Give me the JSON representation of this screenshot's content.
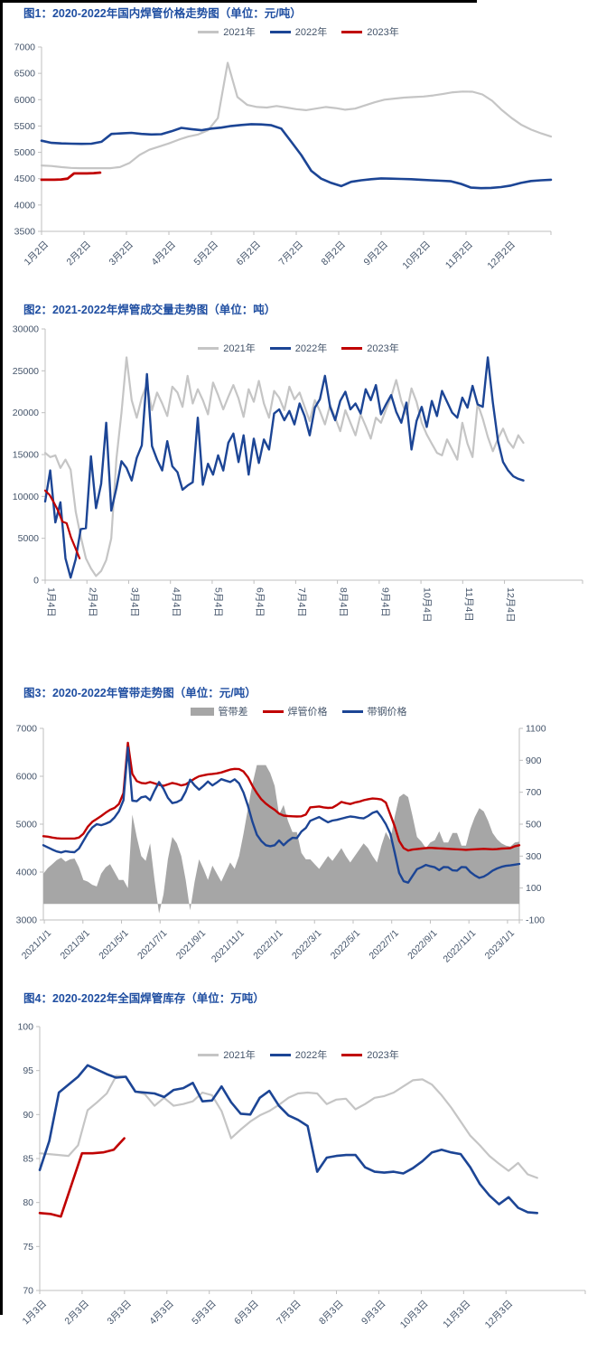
{
  "colors": {
    "navy": "#1c4595",
    "gray": "#c5c5c5",
    "red": "#c00000",
    "area": "#a6a6a6",
    "axis": "#bfbfbf",
    "tick_text": "#44546a",
    "title_text": "#1f4ea1"
  },
  "chart_data": [
    {
      "type": "line",
      "title": "图1：2020-2022年国内焊管价格走势图（单位：元/吨）",
      "y": {
        "min": 3500,
        "max": 7000,
        "step": 500
      },
      "x_ticks": {
        "labels": [
          "1月2日",
          "2月2日",
          "3月2日",
          "4月2日",
          "5月2日",
          "6月2日",
          "7月2日",
          "8月2日",
          "9月2日",
          "10月2日",
          "11月2日",
          "12月2日"
        ],
        "rotate": -45,
        "start": 0,
        "step": 0.08333
      },
      "plot": {
        "l": 46,
        "r": 610,
        "t": 8,
        "b": 212
      },
      "legend": [
        {
          "label": "2021年",
          "color_key": "gray",
          "swatch": "line"
        },
        {
          "label": "2022年",
          "color_key": "navy",
          "swatch": "line"
        },
        {
          "label": "2023年",
          "color_key": "red",
          "swatch": "line"
        }
      ],
      "series": [
        {
          "name": "2021年",
          "color_key": "gray",
          "width": 2.2,
          "x_end": 1,
          "v": [
            4750,
            4740,
            4720,
            4705,
            4700,
            4700,
            4700,
            4700,
            4720,
            4800,
            4950,
            5050,
            5110,
            5170,
            5240,
            5300,
            5340,
            5420,
            5650,
            6700,
            6050,
            5900,
            5860,
            5850,
            5880,
            5850,
            5820,
            5800,
            5830,
            5860,
            5840,
            5810,
            5830,
            5890,
            5950,
            6000,
            6020,
            6040,
            6050,
            6060,
            6080,
            6110,
            6140,
            6155,
            6150,
            6100,
            5980,
            5800,
            5650,
            5520,
            5430,
            5360,
            5300
          ]
        },
        {
          "name": "2022年",
          "color_key": "navy",
          "width": 2.6,
          "x_end": 1,
          "v": [
            5220,
            5180,
            5170,
            5165,
            5160,
            5165,
            5200,
            5350,
            5360,
            5370,
            5350,
            5340,
            5345,
            5400,
            5465,
            5440,
            5420,
            5450,
            5470,
            5500,
            5520,
            5535,
            5530,
            5515,
            5450,
            5200,
            4950,
            4650,
            4500,
            4420,
            4360,
            4440,
            4470,
            4490,
            4505,
            4500,
            4495,
            4490,
            4480,
            4470,
            4460,
            4450,
            4400,
            4330,
            4320,
            4325,
            4340,
            4370,
            4420,
            4455,
            4470,
            4480
          ]
        },
        {
          "name": "2023年",
          "color_key": "red",
          "width": 2.8,
          "x_end": 0.115,
          "v": [
            4480,
            4480,
            4480,
            4485,
            4500,
            4600,
            4600,
            4600,
            4605,
            4615
          ]
        }
      ]
    },
    {
      "type": "line",
      "title": "图2：2021-2022年焊管成交量走势图（单位：吨）",
      "y": {
        "min": 0,
        "max": 30000,
        "step": 5000
      },
      "x_ticks": {
        "labels": [
          "1月4日",
          "2月4日",
          "3月4日",
          "4月4日",
          "5月4日",
          "6月4日",
          "7月4日",
          "8月4日",
          "9月4日",
          "10月4日",
          "11月4日",
          "12月4日"
        ],
        "rotate": -90,
        "start": 0,
        "step": 0.0777
      },
      "plot": {
        "l": 50,
        "r": 645,
        "t": 10,
        "b": 288
      },
      "legend": [
        {
          "label": "2021年",
          "color_key": "gray",
          "swatch": "line"
        },
        {
          "label": "2022年",
          "color_key": "navy",
          "swatch": "line"
        },
        {
          "label": "2023年",
          "color_key": "red",
          "swatch": "line"
        }
      ],
      "series": [
        {
          "name": "2021年",
          "color_key": "gray",
          "width": 2.2,
          "x_end": 0.89,
          "v": [
            15200,
            14700,
            14900,
            13400,
            14400,
            13200,
            8200,
            5200,
            2600,
            1400,
            500,
            1100,
            2400,
            5000,
            14500,
            20000,
            26600,
            21500,
            19400,
            21800,
            23400,
            20300,
            22400,
            21100,
            19600,
            23100,
            22400,
            20700,
            24400,
            21100,
            22800,
            21500,
            19800,
            23600,
            22100,
            20400,
            21900,
            23300,
            21700,
            19500,
            22800,
            21300,
            23800,
            21100,
            19400,
            22600,
            21800,
            20300,
            23100,
            21600,
            22400,
            20700,
            19000,
            21500,
            20200,
            18600,
            20900,
            19400,
            17800,
            20300,
            18800,
            17300,
            19800,
            18400,
            16900,
            19400,
            18800,
            20400,
            21900,
            23900,
            21400,
            19800,
            22900,
            21300,
            18800,
            17400,
            16300,
            15200,
            14900,
            16800,
            15600,
            14400,
            18800,
            16300,
            14700,
            21100,
            19300,
            17100,
            15400,
            16900,
            18100,
            16600,
            15800,
            17300,
            16400
          ]
        },
        {
          "name": "2022年",
          "color_key": "navy",
          "width": 2.4,
          "x_end": 0.89,
          "v": [
            9400,
            13100,
            6900,
            9300,
            2600,
            300,
            2500,
            6100,
            6200,
            14800,
            8600,
            11500,
            18800,
            8300,
            11000,
            14200,
            13400,
            11900,
            14600,
            16100,
            24600,
            16000,
            14400,
            13100,
            16600,
            13600,
            12900,
            10800,
            11300,
            11700,
            19400,
            11400,
            13900,
            12600,
            14900,
            13100,
            16400,
            17500,
            14100,
            17300,
            12600,
            16900,
            14000,
            16800,
            15600,
            19900,
            20400,
            19100,
            20200,
            18600,
            21100,
            19600,
            17300,
            20600,
            21600,
            24400,
            20700,
            19100,
            21400,
            22500,
            20400,
            21100,
            19900,
            22800,
            21500,
            23300,
            19800,
            21000,
            22100,
            20100,
            18800,
            21200,
            15600,
            19000,
            20700,
            18300,
            21400,
            19600,
            22600,
            21300,
            20000,
            19400,
            21800,
            20600,
            23200,
            21000,
            20700,
            26600,
            21200,
            16600,
            14100,
            13100,
            12400,
            12100,
            11900
          ]
        },
        {
          "name": "2023年",
          "color_key": "red",
          "width": 2.2,
          "x_end": 0.064,
          "v": [
            10700,
            10200,
            9300,
            8300,
            7000,
            6800,
            5100,
            3900,
            2600
          ]
        }
      ]
    },
    {
      "type": "line",
      "title": "图3：2020-2022年管带走势图（单位：元/吨）",
      "y": {
        "min": 3000,
        "max": 7000,
        "step": 1000
      },
      "y2": {
        "min": -100,
        "max": 1100,
        "step": 200
      },
      "x_ticks": {
        "labels": [
          "2021/1/1",
          "2021/3/1",
          "2021/5/1",
          "2021/7/1",
          "2021/9/1",
          "2021/11/1",
          "2022/1/1",
          "2022/3/1",
          "2022/5/1",
          "2022/7/1",
          "2022/9/1",
          "2022/11/1",
          "2023/1/1"
        ],
        "rotate": -45,
        "start": 0.002,
        "step": 0.0811
      },
      "plot": {
        "l": 48,
        "r": 575,
        "t": 10,
        "b": 222
      },
      "legend": [
        {
          "label": "管带差",
          "color_key": "area",
          "swatch": "area"
        },
        {
          "label": "焊管价格",
          "color_key": "red",
          "swatch": "line"
        },
        {
          "label": "带钢价格",
          "color_key": "navy",
          "swatch": "line"
        }
      ],
      "series": [
        {
          "name": "管带差",
          "type": "area-diff",
          "from": [
            1,
            2
          ],
          "color_key": "area"
        },
        {
          "name": "焊管价格",
          "color_key": "red",
          "width": 2.4,
          "x_end": 1,
          "v": [
            4750,
            4740,
            4720,
            4705,
            4700,
            4700,
            4700,
            4700,
            4720,
            4800,
            4950,
            5050,
            5110,
            5170,
            5240,
            5300,
            5340,
            5420,
            5650,
            6700,
            6050,
            5900,
            5860,
            5850,
            5880,
            5850,
            5820,
            5800,
            5830,
            5860,
            5840,
            5810,
            5830,
            5890,
            5950,
            6000,
            6020,
            6040,
            6050,
            6060,
            6080,
            6110,
            6140,
            6155,
            6150,
            6100,
            5980,
            5800,
            5650,
            5520,
            5430,
            5360,
            5300,
            5220,
            5180,
            5170,
            5165,
            5160,
            5165,
            5200,
            5350,
            5360,
            5370,
            5350,
            5340,
            5345,
            5400,
            5465,
            5440,
            5420,
            5450,
            5470,
            5500,
            5520,
            5535,
            5530,
            5515,
            5450,
            5200,
            4950,
            4650,
            4500,
            4450,
            4470,
            4480,
            4490,
            4500,
            4505,
            4500,
            4495,
            4490,
            4485,
            4480,
            4475,
            4470,
            4465,
            4470,
            4475,
            4480,
            4485,
            4480,
            4475,
            4480,
            4490,
            4495,
            4500,
            4540,
            4560
          ]
        },
        {
          "name": "带钢价格",
          "color_key": "navy",
          "width": 2.4,
          "x_end": 1,
          "v": [
            4560,
            4515,
            4470,
            4430,
            4410,
            4435,
            4420,
            4415,
            4490,
            4650,
            4810,
            4930,
            5000,
            4980,
            5010,
            5050,
            5140,
            5270,
            5500,
            6600,
            5490,
            5480,
            5560,
            5580,
            5500,
            5700,
            5880,
            5740,
            5550,
            5440,
            5460,
            5510,
            5680,
            5930,
            5810,
            5720,
            5800,
            5890,
            5810,
            5870,
            5940,
            5910,
            5880,
            5935,
            5850,
            5660,
            5380,
            5050,
            4780,
            4650,
            4560,
            4540,
            4560,
            4660,
            4560,
            4650,
            4715,
            4710,
            4845,
            4920,
            5070,
            5110,
            5150,
            5090,
            5040,
            5075,
            5090,
            5115,
            5140,
            5160,
            5150,
            5130,
            5120,
            5170,
            5235,
            5270,
            5150,
            5000,
            4800,
            4400,
            3980,
            3810,
            3780,
            3920,
            4060,
            4100,
            4150,
            4120,
            4100,
            4040,
            4105,
            4100,
            4035,
            4030,
            4105,
            4100,
            4000,
            3930,
            3880,
            3905,
            3960,
            4030,
            4075,
            4110,
            4130,
            4140,
            4155,
            4170
          ]
        }
      ]
    },
    {
      "type": "line",
      "title": "图4：2020-2022年全国焊管库存（单位：万吨）",
      "y": {
        "min": 70,
        "max": 100,
        "step": 5
      },
      "x_ticks": {
        "labels": [
          "1月3日",
          "2月3日",
          "3月3日",
          "4月3日",
          "5月3日",
          "6月3日",
          "7月3日",
          "8月3日",
          "9月3日",
          "10月3日",
          "11月3日",
          "12月3日"
        ],
        "rotate": -45,
        "start": 0,
        "step": 0.0777
      },
      "plot": {
        "l": 44,
        "r": 648,
        "t": 20,
        "b": 312
      },
      "legend": [
        {
          "label": "2021年",
          "color_key": "gray",
          "swatch": "line"
        },
        {
          "label": "2022年",
          "color_key": "navy",
          "swatch": "line"
        },
        {
          "label": "2023年",
          "color_key": "red",
          "swatch": "line"
        }
      ],
      "series": [
        {
          "name": "2021年",
          "color_key": "gray",
          "width": 2.2,
          "x_end": 0.912,
          "v": [
            85.6,
            85.5,
            85.4,
            85.3,
            86.5,
            90.5,
            91.4,
            92.4,
            94.4,
            94.3,
            92.6,
            92.3,
            91.0,
            91.9,
            91.0,
            91.2,
            91.5,
            92.5,
            92.2,
            90.4,
            87.3,
            88.3,
            89.2,
            89.9,
            90.4,
            91.1,
            91.9,
            92.4,
            92.5,
            92.4,
            91.2,
            91.7,
            91.8,
            90.6,
            91.2,
            91.9,
            92.1,
            92.5,
            93.2,
            93.9,
            94.0,
            93.4,
            92.2,
            90.8,
            89.2,
            87.6,
            86.5,
            85.3,
            84.4,
            83.6,
            84.5,
            83.2,
            82.8
          ]
        },
        {
          "name": "2022年",
          "color_key": "navy",
          "width": 2.6,
          "x_end": 0.912,
          "v": [
            83.7,
            87.0,
            92.5,
            93.4,
            94.3,
            95.6,
            95.1,
            94.6,
            94.2,
            94.3,
            92.6,
            92.5,
            92.4,
            92.0,
            92.8,
            93.0,
            93.6,
            91.5,
            91.6,
            93.2,
            91.4,
            90.1,
            90.0,
            91.9,
            92.7,
            91.0,
            89.9,
            89.4,
            88.7,
            83.5,
            85.1,
            85.3,
            85.4,
            85.4,
            84.0,
            83.5,
            83.4,
            83.5,
            83.3,
            83.9,
            84.7,
            85.7,
            86.0,
            85.7,
            85.5,
            84.0,
            82.1,
            80.8,
            79.8,
            80.6,
            79.4,
            78.9,
            78.8
          ]
        },
        {
          "name": "2023年",
          "color_key": "red",
          "width": 2.6,
          "x_end": 0.155,
          "v": [
            78.8,
            78.7,
            78.4,
            82.0,
            85.6,
            85.6,
            85.7,
            86.0,
            87.3
          ]
        }
      ]
    }
  ]
}
